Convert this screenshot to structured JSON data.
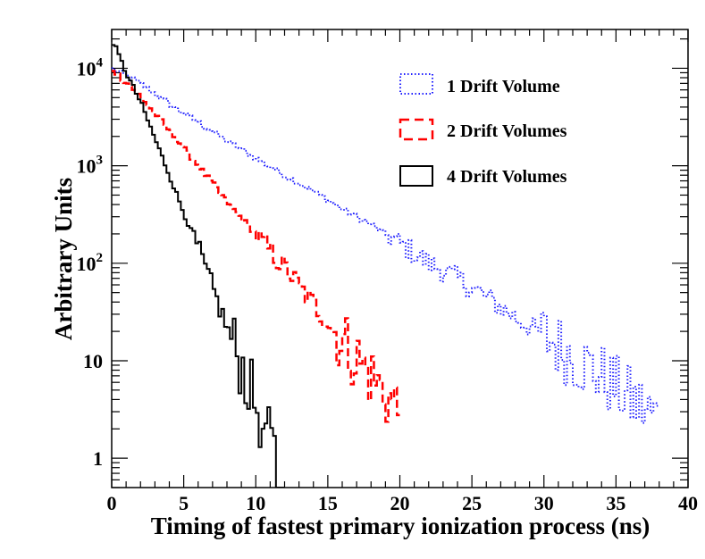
{
  "chart_data": {
    "type": "line",
    "style": "step-histogram",
    "xlabel": "Timing of fastest primary ionization process (ns)",
    "ylabel": "Arbitrary Units",
    "xlim": [
      0,
      40
    ],
    "ylim": [
      0.5,
      25000
    ],
    "yscale": "log",
    "x_ticks": [
      0,
      5,
      10,
      15,
      20,
      25,
      30,
      35,
      40
    ],
    "y_ticks": [
      {
        "value": 1,
        "label": "1"
      },
      {
        "value": 10,
        "label": "10"
      },
      {
        "value": 100,
        "label": "10^2"
      },
      {
        "value": 1000,
        "label": "10^3"
      },
      {
        "value": 10000,
        "label": "10^4"
      }
    ],
    "legend_position": "top-right",
    "series": [
      {
        "name": "1 Drift Volume",
        "color": "#2020ff",
        "dash": "dotted",
        "points": [
          [
            0,
            10000
          ],
          [
            2,
            7000
          ],
          [
            4,
            4300
          ],
          [
            6,
            2800
          ],
          [
            8,
            1800
          ],
          [
            10,
            1200
          ],
          [
            12,
            800
          ],
          [
            14,
            550
          ],
          [
            16,
            360
          ],
          [
            18,
            250
          ],
          [
            20,
            160
          ],
          [
            22,
            100
          ],
          [
            24,
            70
          ],
          [
            26,
            45
          ],
          [
            28,
            28
          ],
          [
            30,
            18
          ],
          [
            32,
            11
          ],
          [
            34,
            7
          ],
          [
            36,
            4
          ],
          [
            38,
            2.5
          ]
        ]
      },
      {
        "name": "2 Drift Volumes",
        "color": "#ff0000",
        "dash": "dashed",
        "points": [
          [
            0,
            10000
          ],
          [
            2,
            5200
          ],
          [
            4,
            2300
          ],
          [
            6,
            1000
          ],
          [
            8,
            430
          ],
          [
            10,
            200
          ],
          [
            12,
            90
          ],
          [
            14,
            38
          ],
          [
            16,
            16
          ],
          [
            18,
            7
          ],
          [
            20,
            3
          ]
        ]
      },
      {
        "name": "4 Drift Volumes",
        "color": "#000000",
        "dash": "solid",
        "points": [
          [
            0,
            20000
          ],
          [
            1,
            9000
          ],
          [
            2,
            4500
          ],
          [
            3,
            1900
          ],
          [
            4,
            800
          ],
          [
            5,
            330
          ],
          [
            6,
            140
          ],
          [
            7,
            55
          ],
          [
            8,
            22
          ],
          [
            9,
            9
          ],
          [
            10,
            3.5
          ],
          [
            11,
            1.4
          ],
          [
            12,
            0.6
          ]
        ]
      }
    ]
  }
}
